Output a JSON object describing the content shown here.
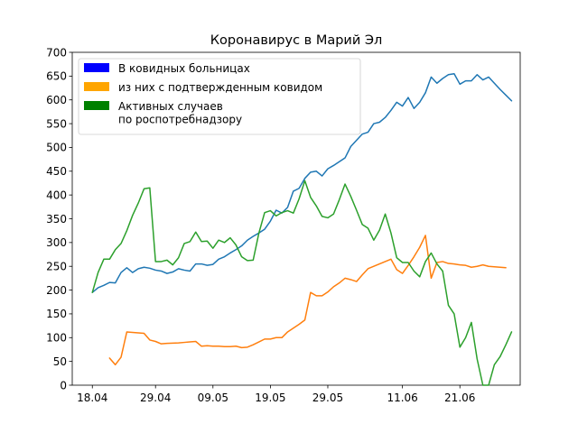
{
  "chart_data": {
    "type": "line",
    "title": "Коронавирус в Марий Эл",
    "xlabel": "",
    "ylabel": "",
    "x_ticks": [
      {
        "day": 0,
        "label": "18.04"
      },
      {
        "day": 11,
        "label": "29.04"
      },
      {
        "day": 21,
        "label": "09.05"
      },
      {
        "day": 31,
        "label": "19.05"
      },
      {
        "day": 41,
        "label": "29.05"
      },
      {
        "day": 54,
        "label": "11.06"
      },
      {
        "day": 64,
        "label": "21.06"
      }
    ],
    "x_range_days": [
      -3.5,
      74.5
    ],
    "ylim": [
      0,
      700
    ],
    "y_ticks": [
      0,
      50,
      100,
      150,
      200,
      250,
      300,
      350,
      400,
      450,
      500,
      550,
      600,
      650,
      700
    ],
    "grid": false,
    "legend_position": "top-left",
    "legend": [
      {
        "label": "В ковидных больницах",
        "color": "#0000ff"
      },
      {
        "label": "из них с подтвержденным ковидом",
        "color": "#ffa500"
      },
      {
        "label": "Активных случаев\nпо роспотребнадзору",
        "color": "#008000"
      }
    ],
    "series": [
      {
        "name": "В ковидных больницах",
        "color": "#1f77b4",
        "points": [
          [
            0,
            195
          ],
          [
            1,
            205
          ],
          [
            2,
            210
          ],
          [
            3,
            216
          ],
          [
            4,
            215
          ],
          [
            5,
            237
          ],
          [
            6,
            247
          ],
          [
            7,
            237
          ],
          [
            8,
            245
          ],
          [
            9,
            248
          ],
          [
            10,
            246
          ],
          [
            11,
            242
          ],
          [
            12,
            240
          ],
          [
            13,
            235
          ],
          [
            14,
            238
          ],
          [
            15,
            245
          ],
          [
            16,
            242
          ],
          [
            17,
            240
          ],
          [
            18,
            255
          ],
          [
            19,
            255
          ],
          [
            20,
            252
          ],
          [
            21,
            254
          ],
          [
            22,
            265
          ],
          [
            23,
            270
          ],
          [
            24,
            278
          ],
          [
            25,
            285
          ],
          [
            26,
            293
          ],
          [
            27,
            305
          ],
          [
            28,
            313
          ],
          [
            29,
            320
          ],
          [
            30,
            328
          ],
          [
            31,
            345
          ],
          [
            32,
            368
          ],
          [
            33,
            362
          ],
          [
            34,
            374
          ],
          [
            35,
            408
          ],
          [
            36,
            414
          ],
          [
            37,
            435
          ],
          [
            38,
            448
          ],
          [
            39,
            450
          ],
          [
            40,
            440
          ],
          [
            41,
            455
          ],
          [
            42,
            462
          ],
          [
            43,
            470
          ],
          [
            44,
            478
          ],
          [
            45,
            502
          ],
          [
            46,
            515
          ],
          [
            47,
            528
          ],
          [
            48,
            532
          ],
          [
            49,
            550
          ],
          [
            50,
            553
          ],
          [
            51,
            563
          ],
          [
            52,
            578
          ],
          [
            53,
            595
          ],
          [
            54,
            587
          ],
          [
            55,
            605
          ],
          [
            56,
            582
          ],
          [
            57,
            595
          ],
          [
            58,
            615
          ],
          [
            59,
            648
          ],
          [
            60,
            635
          ],
          [
            61,
            645
          ],
          [
            62,
            653
          ],
          [
            63,
            655
          ],
          [
            64,
            633
          ],
          [
            65,
            640
          ],
          [
            66,
            640
          ],
          [
            67,
            653
          ],
          [
            68,
            642
          ],
          [
            69,
            648
          ],
          [
            70,
            635
          ],
          [
            71,
            622
          ],
          [
            72,
            610
          ],
          [
            73,
            598
          ]
        ]
      },
      {
        "name": "из них с подтвержденным ковидом",
        "color": "#ff7f0e",
        "points": [
          [
            3,
            57
          ],
          [
            4,
            43
          ],
          [
            5,
            59
          ],
          [
            6,
            112
          ],
          [
            8,
            110
          ],
          [
            9,
            109
          ],
          [
            10,
            95
          ],
          [
            11,
            92
          ],
          [
            12,
            87
          ],
          [
            13,
            88
          ],
          [
            15,
            89
          ],
          [
            16,
            90
          ],
          [
            17,
            91
          ],
          [
            18,
            92
          ],
          [
            19,
            82
          ],
          [
            20,
            83
          ],
          [
            21,
            82
          ],
          [
            22,
            82
          ],
          [
            23,
            81
          ],
          [
            24,
            81
          ],
          [
            25,
            82
          ],
          [
            26,
            79
          ],
          [
            27,
            80
          ],
          [
            28,
            85
          ],
          [
            29,
            91
          ],
          [
            30,
            97
          ],
          [
            31,
            97
          ],
          [
            32,
            100
          ],
          [
            33,
            100
          ],
          [
            34,
            112
          ],
          [
            35,
            120
          ],
          [
            36,
            128
          ],
          [
            37,
            137
          ],
          [
            38,
            195
          ],
          [
            39,
            188
          ],
          [
            40,
            188
          ],
          [
            41,
            196
          ],
          [
            42,
            207
          ],
          [
            43,
            215
          ],
          [
            44,
            225
          ],
          [
            45,
            222
          ],
          [
            46,
            218
          ],
          [
            47,
            232
          ],
          [
            48,
            245
          ],
          [
            49,
            250
          ],
          [
            50,
            255
          ],
          [
            51,
            260
          ],
          [
            52,
            265
          ],
          [
            53,
            243
          ],
          [
            54,
            235
          ],
          [
            55,
            252
          ],
          [
            56,
            270
          ],
          [
            57,
            290
          ],
          [
            58,
            315
          ],
          [
            59,
            225
          ],
          [
            60,
            258
          ],
          [
            61,
            260
          ],
          [
            62,
            256
          ],
          [
            63,
            255
          ],
          [
            64,
            253
          ],
          [
            65,
            252
          ],
          [
            66,
            248
          ],
          [
            67,
            250
          ],
          [
            68,
            253
          ],
          [
            69,
            250
          ],
          [
            70,
            249
          ],
          [
            71,
            248
          ],
          [
            72,
            247
          ]
        ]
      },
      {
        "name": "Активных случаев по роспотребнадзору",
        "color": "#2ca02c",
        "points": [
          [
            0,
            195
          ],
          [
            1,
            237
          ],
          [
            2,
            265
          ],
          [
            3,
            265
          ],
          [
            4,
            285
          ],
          [
            5,
            298
          ],
          [
            6,
            325
          ],
          [
            7,
            357
          ],
          [
            8,
            383
          ],
          [
            9,
            413
          ],
          [
            10,
            415
          ],
          [
            11,
            260
          ],
          [
            12,
            260
          ],
          [
            13,
            263
          ],
          [
            14,
            253
          ],
          [
            15,
            268
          ],
          [
            16,
            298
          ],
          [
            17,
            302
          ],
          [
            18,
            322
          ],
          [
            19,
            302
          ],
          [
            20,
            303
          ],
          [
            21,
            288
          ],
          [
            22,
            305
          ],
          [
            23,
            300
          ],
          [
            24,
            310
          ],
          [
            25,
            295
          ],
          [
            26,
            270
          ],
          [
            27,
            262
          ],
          [
            28,
            263
          ],
          [
            29,
            320
          ],
          [
            30,
            363
          ],
          [
            31,
            367
          ],
          [
            32,
            356
          ],
          [
            33,
            363
          ],
          [
            34,
            367
          ],
          [
            35,
            362
          ],
          [
            36,
            392
          ],
          [
            37,
            430
          ],
          [
            38,
            395
          ],
          [
            39,
            377
          ],
          [
            40,
            355
          ],
          [
            41,
            352
          ],
          [
            42,
            360
          ],
          [
            43,
            390
          ],
          [
            44,
            423
          ],
          [
            45,
            397
          ],
          [
            46,
            368
          ],
          [
            47,
            338
          ],
          [
            48,
            330
          ],
          [
            49,
            305
          ],
          [
            50,
            326
          ],
          [
            51,
            360
          ],
          [
            52,
            320
          ],
          [
            53,
            268
          ],
          [
            54,
            258
          ],
          [
            55,
            258
          ],
          [
            56,
            240
          ],
          [
            57,
            228
          ],
          [
            58,
            260
          ],
          [
            59,
            278
          ],
          [
            60,
            255
          ],
          [
            61,
            240
          ],
          [
            62,
            168
          ],
          [
            63,
            150
          ],
          [
            64,
            80
          ],
          [
            65,
            100
          ],
          [
            66,
            132
          ],
          [
            67,
            55
          ],
          [
            68,
            0
          ],
          [
            69,
            0
          ],
          [
            70,
            43
          ],
          [
            71,
            60
          ],
          [
            72,
            85
          ],
          [
            73,
            112
          ]
        ]
      }
    ]
  }
}
